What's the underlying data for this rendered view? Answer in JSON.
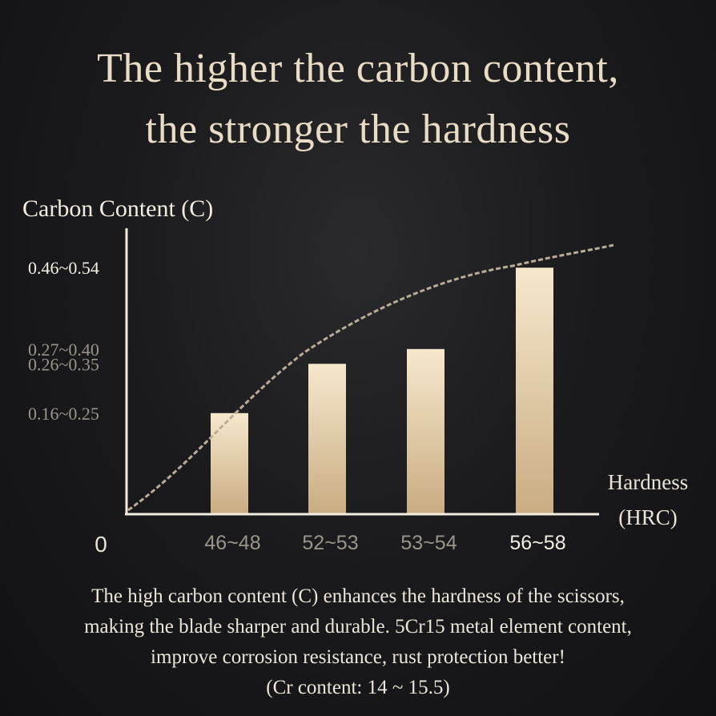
{
  "headline": {
    "line1": "The higher the carbon content,",
    "line2": "the stronger the hardness"
  },
  "chart_data": {
    "type": "bar",
    "ylabel": "Carbon Content (C)",
    "xlabel_line1": "Hardness",
    "xlabel_line2": "(HRC)",
    "origin_label": "0",
    "categories": [
      "46~48",
      "52~53",
      "53~54",
      "56~58"
    ],
    "y_tick_labels": [
      "0.16~0.25",
      "0.26~0.35",
      "0.27~0.40",
      "0.46~0.54"
    ],
    "values": [
      0.205,
      0.305,
      0.335,
      0.5
    ],
    "ylim": [
      0,
      0.58
    ],
    "trend_line": "dashed",
    "grid": false,
    "legend": "none"
  },
  "caption": {
    "line1": "The high carbon content (C) enhances the hardness of the scissors,",
    "line2": "making the blade sharper and durable. 5Cr15 metal element content,",
    "line3": "improve corrosion resistance, rust protection better!",
    "line4": "(Cr content: 14 ~ 15.5)"
  },
  "colors": {
    "headline": "#e9dcc4",
    "bar_top": "#f6e8cd",
    "bar_bottom": "#c9ac82",
    "axis": "#f3ece0",
    "tick_dim": "#9a958c",
    "tick_bright": "#f4efe6",
    "trend": "#b9ad98"
  }
}
